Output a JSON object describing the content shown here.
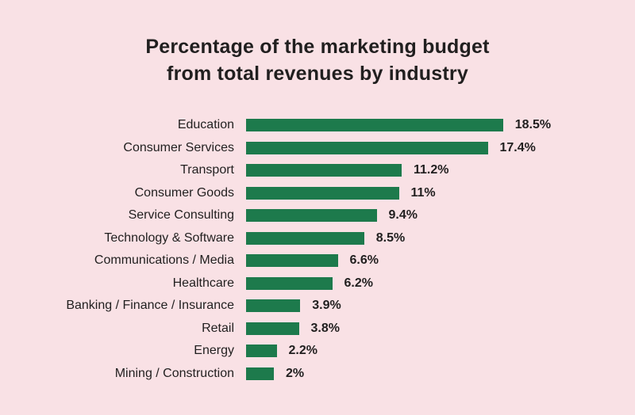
{
  "chart_data": {
    "type": "bar",
    "orientation": "horizontal",
    "title": "Percentage of the marketing budget from total revenues by industry",
    "title_lines": [
      "Percentage of the marketing budget",
      "from total revenues by industry"
    ],
    "categories": [
      "Education",
      "Consumer Services",
      "Transport",
      "Consumer Goods",
      "Service Consulting",
      "Technology & Software",
      "Communications / Media",
      "Healthcare",
      "Banking / Finance / Insurance",
      "Retail",
      "Energy",
      "Mining / Construction"
    ],
    "values": [
      18.5,
      17.4,
      11.2,
      11,
      9.4,
      8.5,
      6.6,
      6.2,
      3.9,
      3.8,
      2.2,
      2
    ],
    "value_labels": [
      "18.5%",
      "17.4%",
      "11.2%",
      "11%",
      "9.4%",
      "8.5%",
      "6.6%",
      "6.2%",
      "3.9%",
      "3.8%",
      "2.2%",
      "2%"
    ],
    "xlim": [
      0,
      20
    ],
    "grid": false,
    "legend": false,
    "bar_color": "#1d7a4c",
    "background_color": "#f9e1e5",
    "text_color": "#211f1f"
  }
}
